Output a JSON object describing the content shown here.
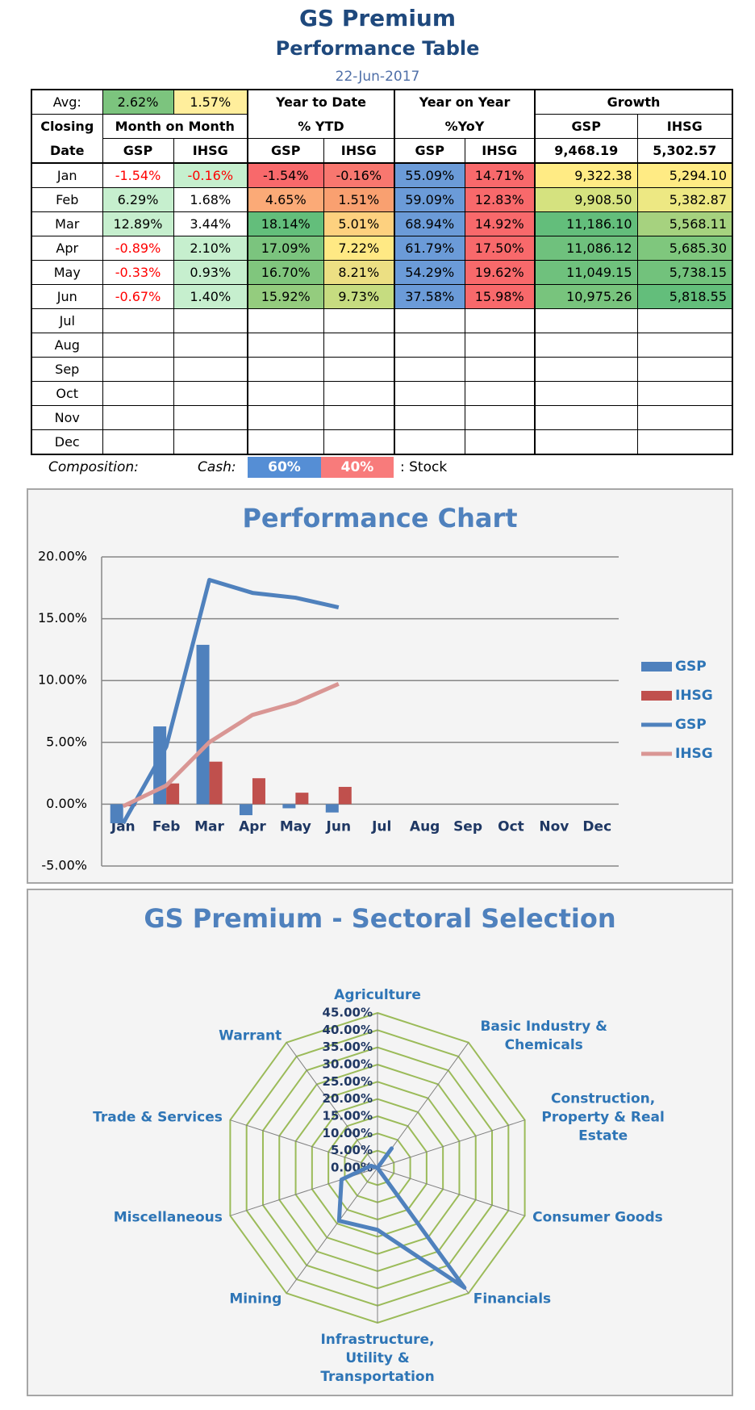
{
  "header": {
    "title": "GS Premium",
    "subtitle": "Performance Table",
    "date": "22-Jun-2017"
  },
  "table": {
    "header_rows": [
      [
        {
          "text": "Avg:"
        },
        {
          "text": "2.62%",
          "fill": "#7cc47e"
        },
        {
          "text": "1.57%",
          "fill": "#ffee9c"
        },
        {
          "text": "Year to Date",
          "span": 2
        },
        {
          "text": "Year on Year",
          "span": 2
        },
        {
          "text": "Growth",
          "span": 2
        }
      ],
      [
        {
          "text": "Closing"
        },
        {
          "text": "Month on Month",
          "span": 2
        },
        {
          "text": "% YTD",
          "span": 2
        },
        {
          "text": "%YoY",
          "span": 2
        },
        {
          "text": "GSP"
        },
        {
          "text": "IHSG"
        }
      ],
      [
        {
          "text": "Date"
        },
        {
          "text": "GSP"
        },
        {
          "text": "IHSG"
        },
        {
          "text": "GSP"
        },
        {
          "text": "IHSG"
        },
        {
          "text": "GSP"
        },
        {
          "text": "IHSG"
        },
        {
          "text": "9,468.19"
        },
        {
          "text": "5,302.57"
        }
      ]
    ],
    "rows": [
      {
        "cells": [
          "Jan",
          "-1.54%",
          "-0.16%",
          "-1.54%",
          "-0.16%",
          "55.09%",
          "14.71%",
          "9,322.38",
          "5,294.10"
        ],
        "fills": [
          "#ffffff",
          "#c6efce",
          "#f8696b",
          "#f8776f",
          "#6b9bd8",
          "#f8696b",
          "#ffeb84",
          "#ffeb84"
        ],
        "text_colors": [
          "#ff0000",
          "#ff0000",
          "#000000",
          "#000000",
          "#000000",
          "#000000",
          "#000000",
          "#000000"
        ]
      },
      {
        "cells": [
          "Feb",
          "6.29%",
          "1.68%",
          "4.65%",
          "1.51%",
          "59.09%",
          "12.83%",
          "9,908.50",
          "5,382.87"
        ],
        "fills": [
          "#c6efce",
          "#ffffff",
          "#fbaa77",
          "#f9a070",
          "#6b9bd8",
          "#f8696b",
          "#d5e27f",
          "#ede883"
        ],
        "text_colors": [
          "#000000",
          "#000000",
          "#000000",
          "#000000",
          "#000000",
          "#000000",
          "#000000",
          "#000000"
        ]
      },
      {
        "cells": [
          "Mar",
          "12.89%",
          "3.44%",
          "18.14%",
          "5.01%",
          "68.94%",
          "14.92%",
          "11,186.10",
          "5,568.11"
        ],
        "fills": [
          "#c6efce",
          "#ffffff",
          "#63be7b",
          "#fdd17f",
          "#6b9bd8",
          "#f8696b",
          "#63be7b",
          "#a6d27f"
        ],
        "text_colors": [
          "#000000",
          "#000000",
          "#000000",
          "#000000",
          "#000000",
          "#000000",
          "#000000",
          "#000000"
        ]
      },
      {
        "cells": [
          "Apr",
          "-0.89%",
          "2.10%",
          "17.09%",
          "7.22%",
          "61.79%",
          "17.50%",
          "11,086.12",
          "5,685.30"
        ],
        "fills": [
          "#ffffff",
          "#c6efce",
          "#7bc47e",
          "#ffe984",
          "#6b9bd8",
          "#f8696b",
          "#6fc17d",
          "#7fc77d"
        ],
        "text_colors": [
          "#ff0000",
          "#000000",
          "#000000",
          "#000000",
          "#000000",
          "#000000",
          "#000000",
          "#000000"
        ]
      },
      {
        "cells": [
          "May",
          "-0.33%",
          "0.93%",
          "16.70%",
          "8.21%",
          "54.29%",
          "19.62%",
          "11,049.15",
          "5,738.15"
        ],
        "fills": [
          "#ffffff",
          "#c6efce",
          "#80c67d",
          "#ecdf83",
          "#6b9bd8",
          "#f8696b",
          "#6fc17d",
          "#72c27c"
        ],
        "text_colors": [
          "#ff0000",
          "#000000",
          "#000000",
          "#000000",
          "#000000",
          "#000000",
          "#000000",
          "#000000"
        ]
      },
      {
        "cells": [
          "Jun",
          "-0.67%",
          "1.40%",
          "15.92%",
          "9.73%",
          "37.58%",
          "15.98%",
          "10,975.26",
          "5,818.55"
        ],
        "fills": [
          "#ffffff",
          "#c6efce",
          "#94cc7e",
          "#c6dc80",
          "#6b9bd8",
          "#f8696b",
          "#78c47d",
          "#63be7b"
        ],
        "text_colors": [
          "#ff0000",
          "#000000",
          "#000000",
          "#000000",
          "#000000",
          "#000000",
          "#000000",
          "#000000"
        ]
      },
      {
        "cells": [
          "Jul"
        ]
      },
      {
        "cells": [
          "Aug"
        ]
      },
      {
        "cells": [
          "Sep"
        ]
      },
      {
        "cells": [
          "Oct"
        ]
      },
      {
        "cells": [
          "Nov"
        ]
      },
      {
        "cells": [
          "Dec"
        ]
      }
    ]
  },
  "composition": {
    "label": "Composition:",
    "cash_label": "Cash:",
    "cash": "60%",
    "stock": "40%",
    "stock_label": ": Stock"
  },
  "chart_data": [
    {
      "type": "combo",
      "title": "Performance Chart",
      "categories": [
        "Jan",
        "Feb",
        "Mar",
        "Apr",
        "May",
        "Jun",
        "Jul",
        "Aug",
        "Sep",
        "Oct",
        "Nov",
        "Dec"
      ],
      "series": [
        {
          "name": "GSP",
          "type": "bar",
          "color": "#4f81bd",
          "values": [
            -1.54,
            6.29,
            12.89,
            -0.89,
            -0.33,
            -0.67,
            null,
            null,
            null,
            null,
            null,
            null
          ]
        },
        {
          "name": "IHSG",
          "type": "bar",
          "color": "#c0504d",
          "values": [
            -0.16,
            1.68,
            3.44,
            2.1,
            0.93,
            1.4,
            null,
            null,
            null,
            null,
            null,
            null
          ]
        },
        {
          "name": "GSP",
          "type": "line",
          "color": "#4f81bd",
          "values": [
            -1.54,
            4.65,
            18.14,
            17.09,
            16.7,
            15.92,
            null,
            null,
            null,
            null,
            null,
            null
          ]
        },
        {
          "name": "IHSG",
          "type": "line",
          "color": "#d99694",
          "values": [
            -0.16,
            1.51,
            5.01,
            7.22,
            8.21,
            9.73,
            null,
            null,
            null,
            null,
            null,
            null
          ]
        }
      ],
      "ylim": [
        -5,
        20
      ],
      "yticks": [
        {
          "value": -5,
          "label": "-5.00%"
        },
        {
          "value": 0,
          "label": "0.00%"
        },
        {
          "value": 5,
          "label": "5.00%"
        },
        {
          "value": 10,
          "label": "10.00%"
        },
        {
          "value": 15,
          "label": "15.00%"
        },
        {
          "value": 20,
          "label": "20.00%"
        }
      ],
      "grid": true,
      "legend": "right"
    },
    {
      "type": "radar",
      "title": "GS Premium - Sectoral Selection",
      "categories": [
        "Agriculture",
        "Basic Industry & Chemicals",
        "Construction, Property & Real Estate",
        "Consumer Goods",
        "Financials",
        "Infrastructure, Utility & Transportation",
        "Mining",
        "Miscellaneous",
        "Trade & Services",
        "Warrant"
      ],
      "series": [
        {
          "name": "GSP",
          "color": "#4f81bd",
          "values": [
            0,
            7,
            0,
            0,
            43,
            18,
            19,
            11,
            2,
            0
          ]
        }
      ],
      "rlim": [
        0,
        45
      ],
      "rticks": [
        {
          "value": 0,
          "label": "0.00%"
        },
        {
          "value": 5,
          "label": "5.00%"
        },
        {
          "value": 10,
          "label": "10.00%"
        },
        {
          "value": 15,
          "label": "15.00%"
        },
        {
          "value": 20,
          "label": "20.00%"
        },
        {
          "value": 25,
          "label": "25.00%"
        },
        {
          "value": 30,
          "label": "30.00%"
        },
        {
          "value": 35,
          "label": "35.00%"
        },
        {
          "value": 40,
          "label": "40.00%"
        },
        {
          "value": 45,
          "label": "45.00%"
        }
      ],
      "grid_color": "#9bbb59"
    }
  ]
}
